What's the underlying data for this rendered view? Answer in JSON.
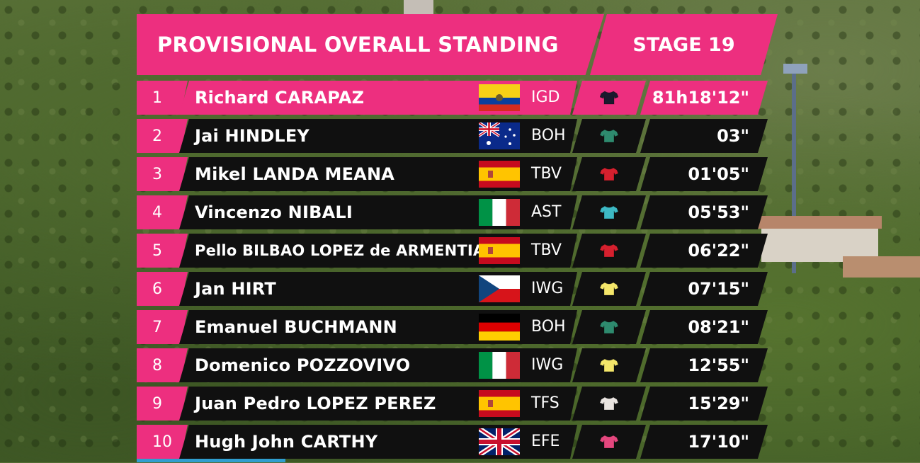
{
  "header": {
    "title": "PROVISIONAL OVERALL STANDING",
    "stage": "STAGE 19"
  },
  "colors": {
    "accent": "#ed2f7f",
    "row_bg": "#101010"
  },
  "standings": [
    {
      "pos": "1",
      "name": "Richard CARAPAZ",
      "flag": "flag-ecuador",
      "team": "IGD",
      "time": "81h18'12\"",
      "jersey": "#1a1a2e",
      "leader": true
    },
    {
      "pos": "2",
      "name": "Jai HINDLEY",
      "flag": "flag-australia",
      "team": "BOH",
      "time": "03\"",
      "jersey": "#2e8a6e",
      "leader": false
    },
    {
      "pos": "3",
      "name": "Mikel LANDA MEANA",
      "flag": "flag-spain",
      "team": "TBV",
      "time": "01'05\"",
      "jersey": "#d6202e",
      "leader": false
    },
    {
      "pos": "4",
      "name": "Vincenzo NIBALI",
      "flag": "flag-italy",
      "team": "AST",
      "time": "05'53\"",
      "jersey": "#3db9c4",
      "leader": false
    },
    {
      "pos": "5",
      "name": "Pello BILBAO LOPEZ de ARMENTIA",
      "flag": "flag-spain",
      "team": "TBV",
      "time": "06'22\"",
      "jersey": "#d6202e",
      "leader": false
    },
    {
      "pos": "6",
      "name": "Jan HIRT",
      "flag": "flag-czech",
      "team": "IWG",
      "time": "07'15\"",
      "jersey": "#f4e66a",
      "leader": false
    },
    {
      "pos": "7",
      "name": "Emanuel BUCHMANN",
      "flag": "flag-germany",
      "team": "BOH",
      "time": "08'21\"",
      "jersey": "#2e8a6e",
      "leader": false
    },
    {
      "pos": "8",
      "name": "Domenico POZZOVIVO",
      "flag": "flag-italy",
      "team": "IWG",
      "time": "12'55\"",
      "jersey": "#f4e66a",
      "leader": false
    },
    {
      "pos": "9",
      "name": "Juan Pedro LOPEZ PEREZ",
      "flag": "flag-spain",
      "team": "TFS",
      "time": "15'29\"",
      "jersey": "#e9e4e0",
      "leader": false
    },
    {
      "pos": "10",
      "name": "Hugh John CARTHY",
      "flag": "flag-uk",
      "team": "EFE",
      "time": "17'10\"",
      "jersey": "#e4477e",
      "leader": false
    }
  ]
}
